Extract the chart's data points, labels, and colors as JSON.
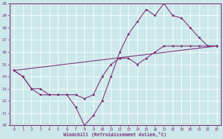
{
  "background_color": "#cce8ea",
  "line_color": "#7b2f7b",
  "xlabel": "Windchill (Refroidissement éolien,°C)",
  "xlim": [
    -0.5,
    23.5
  ],
  "ylim": [
    10,
    20
  ],
  "xticks": [
    0,
    1,
    2,
    3,
    4,
    5,
    6,
    7,
    8,
    9,
    10,
    11,
    12,
    13,
    14,
    15,
    16,
    17,
    18,
    19,
    20,
    21,
    22,
    23
  ],
  "yticks": [
    10,
    11,
    12,
    13,
    14,
    15,
    16,
    17,
    18,
    19,
    20
  ],
  "series1": [
    [
      0,
      14.5
    ],
    [
      1,
      14.0
    ],
    [
      2,
      13.0
    ],
    [
      3,
      12.5
    ],
    [
      4,
      12.5
    ],
    [
      5,
      12.5
    ],
    [
      6,
      12.5
    ],
    [
      7,
      11.5
    ],
    [
      8,
      10.0
    ],
    [
      9,
      10.8
    ],
    [
      10,
      12.0
    ],
    [
      11,
      14.0
    ],
    [
      12,
      16.0
    ],
    [
      13,
      17.5
    ],
    [
      14,
      18.5
    ],
    [
      15,
      19.5
    ],
    [
      16,
      19.0
    ],
    [
      17,
      20.0
    ],
    [
      18,
      19.0
    ],
    [
      19,
      18.8
    ],
    [
      20,
      18.0
    ],
    [
      21,
      17.2
    ],
    [
      22,
      16.5
    ],
    [
      23,
      16.5
    ]
  ],
  "series2": [
    [
      0,
      14.5
    ],
    [
      1,
      14.0
    ],
    [
      2,
      13.0
    ],
    [
      3,
      13.0
    ],
    [
      4,
      12.5
    ],
    [
      5,
      12.5
    ],
    [
      6,
      12.5
    ],
    [
      7,
      12.5
    ],
    [
      8,
      12.2
    ],
    [
      9,
      12.5
    ],
    [
      10,
      14.0
    ],
    [
      11,
      15.0
    ],
    [
      12,
      15.5
    ],
    [
      13,
      15.5
    ],
    [
      14,
      15.0
    ],
    [
      15,
      15.5
    ],
    [
      16,
      16.0
    ],
    [
      17,
      16.5
    ],
    [
      18,
      16.5
    ],
    [
      19,
      16.5
    ],
    [
      20,
      16.5
    ],
    [
      21,
      16.5
    ],
    [
      22,
      16.5
    ],
    [
      23,
      16.5
    ]
  ],
  "series3": [
    [
      0,
      14.5
    ],
    [
      23,
      16.5
    ]
  ]
}
